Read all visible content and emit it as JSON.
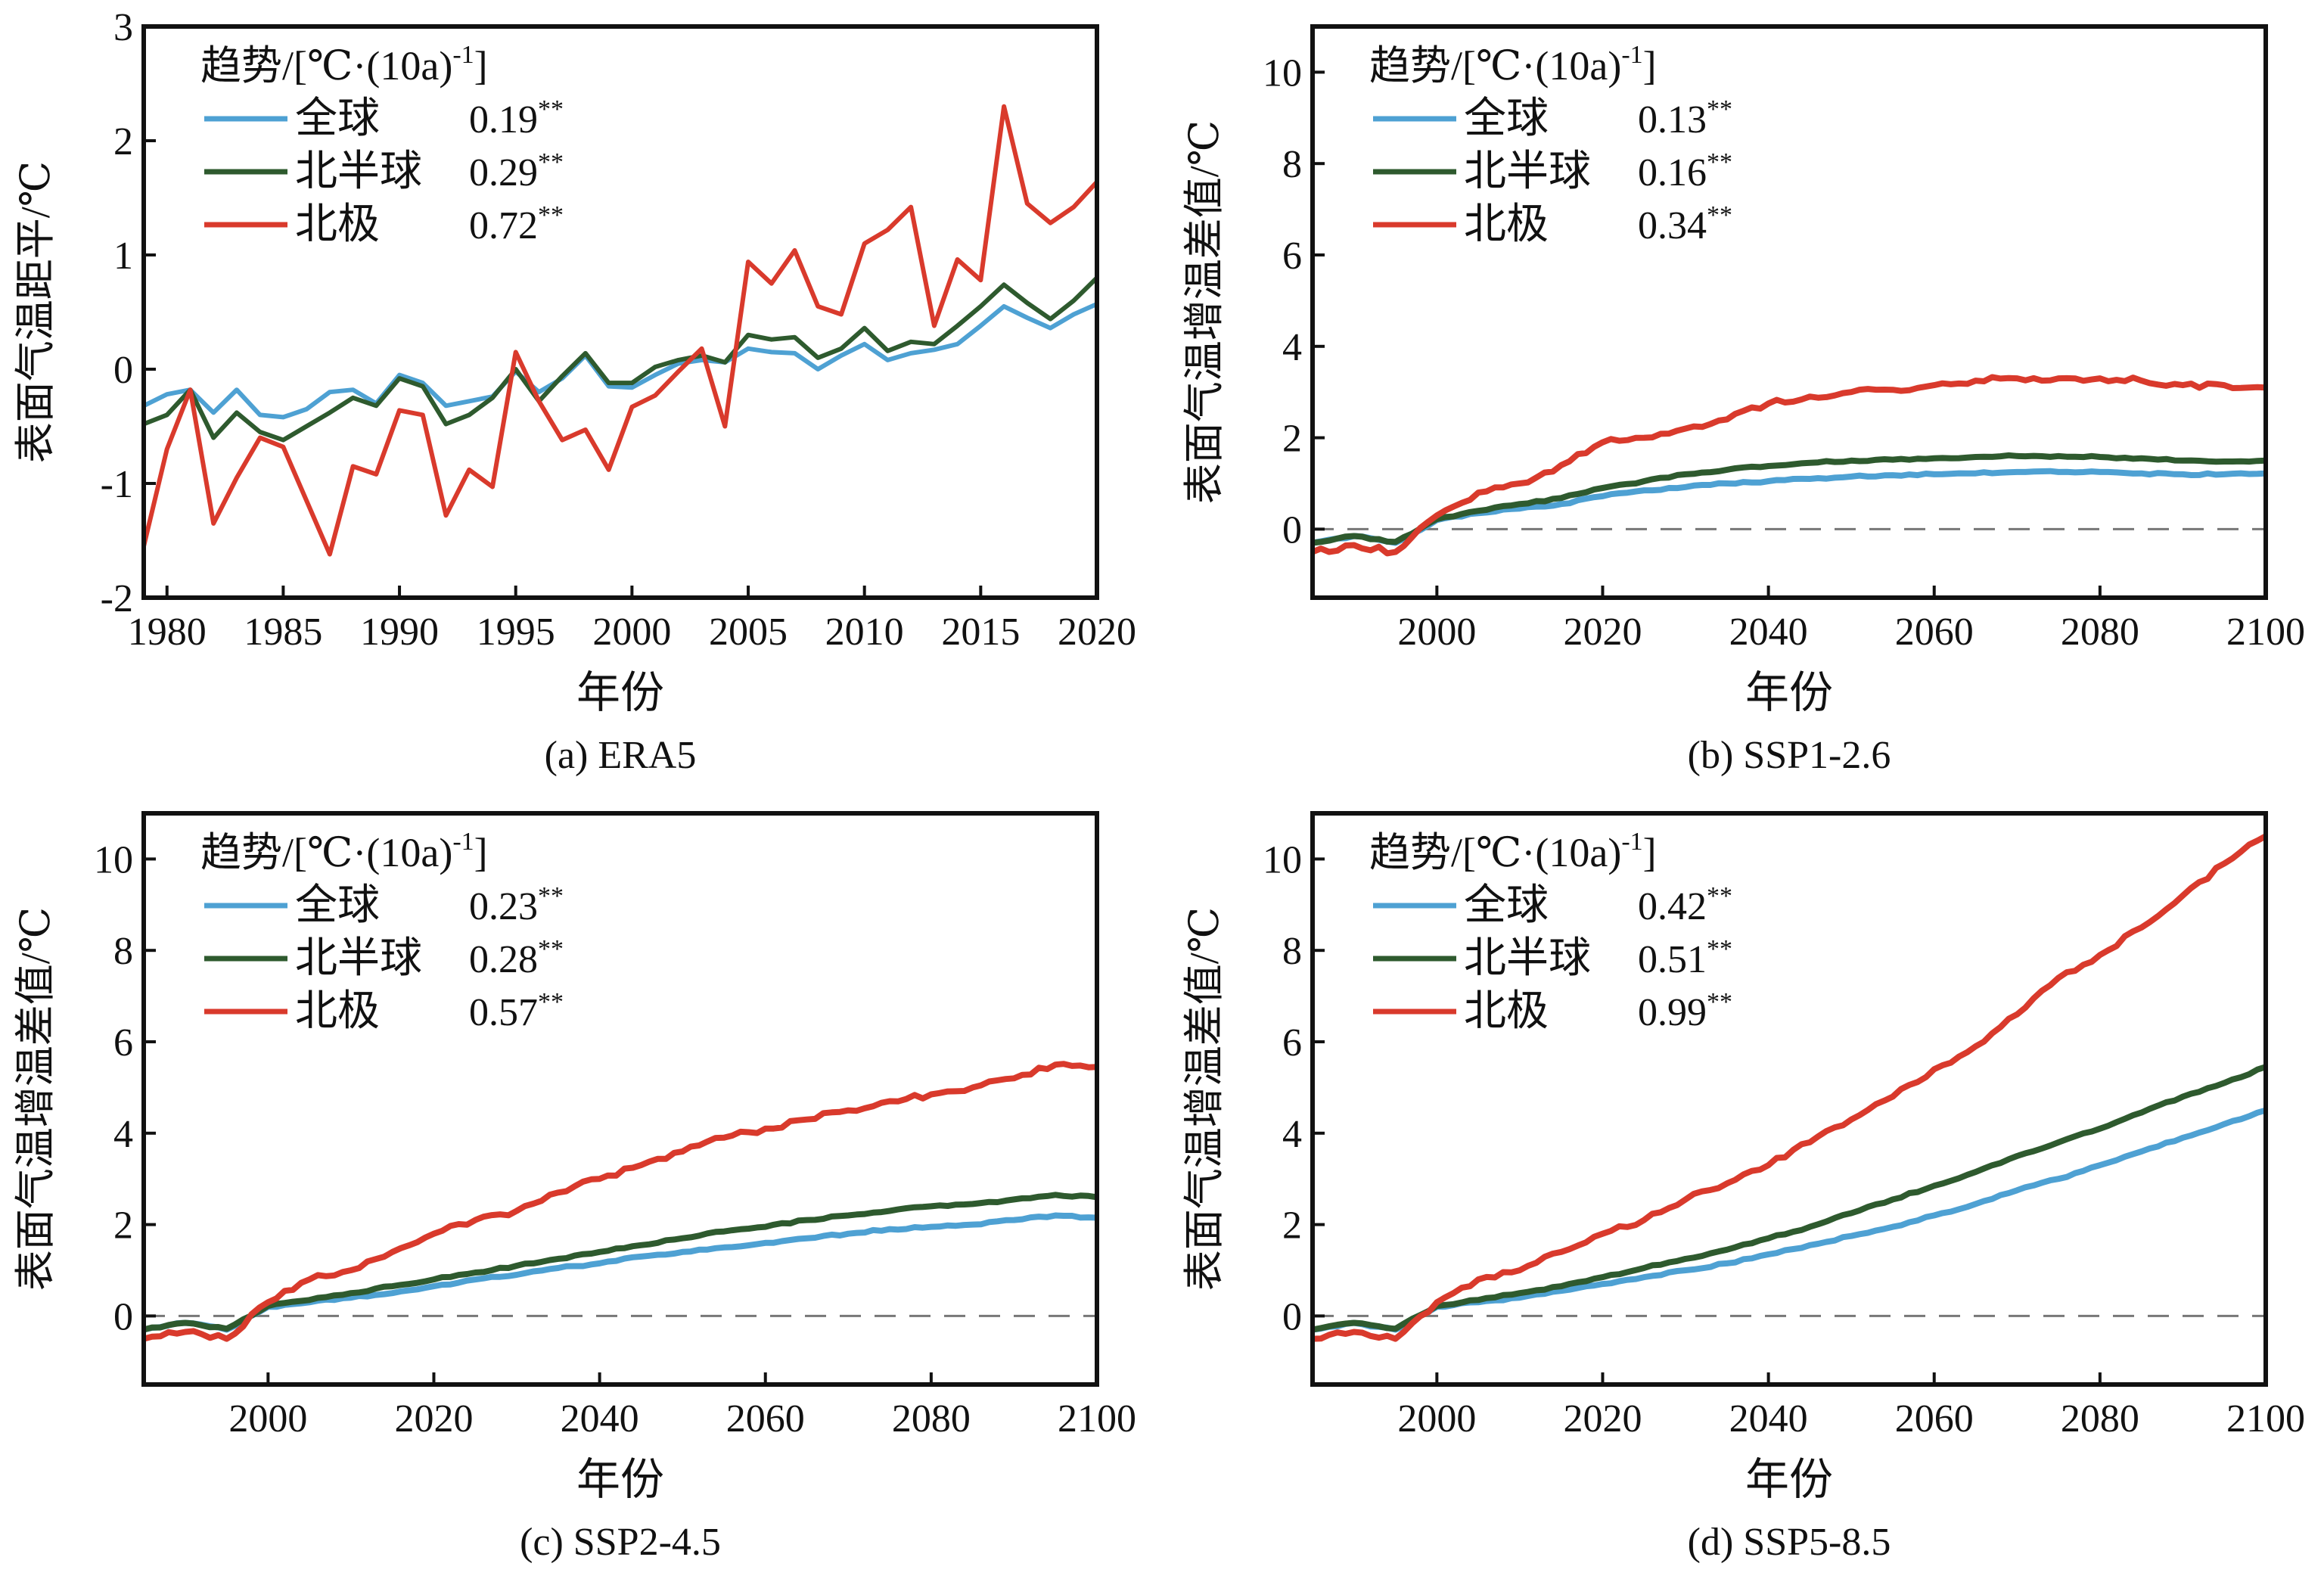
{
  "colors": {
    "global": "#4ea1d3",
    "nh": "#2e5a2e",
    "arctic": "#d93a2c",
    "zero": "#777777",
    "frame": "#111111"
  },
  "chart_data": [
    {
      "type": "line",
      "panel": "a",
      "caption": "(a) ERA5",
      "xlabel": "年份",
      "ylabel": "表面气温距平/℃",
      "xlim": [
        1979,
        2020
      ],
      "ylim": [
        -2,
        3
      ],
      "xticks": [
        1980,
        1985,
        1990,
        1995,
        2000,
        2005,
        2010,
        2015,
        2020
      ],
      "yticks": [
        -2,
        -1,
        0,
        1,
        2,
        3
      ],
      "zero_line": false,
      "legend": {
        "title_main": "趋势/[℃·(10a)",
        "title_sup": "-1",
        "title_end": "]",
        "entries": [
          {
            "name": "全球",
            "trend": "0.19",
            "sig": "**"
          },
          {
            "name": "北半球",
            "trend": "0.29",
            "sig": "**"
          },
          {
            "name": "北极",
            "trend": "0.72",
            "sig": "**"
          }
        ]
      },
      "x": [
        1979,
        1980,
        1981,
        1982,
        1983,
        1984,
        1985,
        1986,
        1987,
        1988,
        1989,
        1990,
        1991,
        1992,
        1993,
        1994,
        1995,
        1996,
        1997,
        1998,
        1999,
        2000,
        2001,
        2002,
        2003,
        2004,
        2005,
        2006,
        2007,
        2008,
        2009,
        2010,
        2011,
        2012,
        2013,
        2014,
        2015,
        2016,
        2017,
        2018,
        2019,
        2020
      ],
      "series": [
        {
          "name": "全球",
          "values": [
            -0.32,
            -0.22,
            -0.18,
            -0.38,
            -0.18,
            -0.4,
            -0.42,
            -0.35,
            -0.2,
            -0.18,
            -0.3,
            -0.05,
            -0.12,
            -0.32,
            -0.28,
            -0.24,
            -0.02,
            -0.2,
            -0.08,
            0.12,
            -0.15,
            -0.16,
            -0.05,
            0.05,
            0.08,
            0.06,
            0.18,
            0.15,
            0.14,
            0.0,
            0.12,
            0.22,
            0.08,
            0.14,
            0.17,
            0.22,
            0.38,
            0.55,
            0.45,
            0.36,
            0.48,
            0.57
          ]
        },
        {
          "name": "北半球",
          "values": [
            -0.48,
            -0.4,
            -0.18,
            -0.6,
            -0.38,
            -0.55,
            -0.62,
            -0.5,
            -0.38,
            -0.25,
            -0.32,
            -0.08,
            -0.15,
            -0.48,
            -0.4,
            -0.25,
            0.0,
            -0.28,
            -0.06,
            0.14,
            -0.12,
            -0.12,
            0.02,
            0.08,
            0.12,
            0.06,
            0.3,
            0.26,
            0.28,
            0.1,
            0.18,
            0.36,
            0.16,
            0.24,
            0.22,
            0.38,
            0.55,
            0.74,
            0.58,
            0.44,
            0.6,
            0.8
          ]
        },
        {
          "name": "北极",
          "values": [
            -1.55,
            -0.7,
            -0.18,
            -1.35,
            -0.95,
            -0.6,
            -0.68,
            -1.15,
            -1.62,
            -0.85,
            -0.92,
            -0.36,
            -0.4,
            -1.28,
            -0.88,
            -1.03,
            0.15,
            -0.28,
            -0.62,
            -0.53,
            -0.88,
            -0.33,
            -0.23,
            -0.02,
            0.18,
            -0.5,
            0.94,
            0.75,
            1.04,
            0.55,
            0.48,
            1.1,
            1.22,
            1.42,
            0.38,
            0.96,
            0.78,
            2.3,
            1.45,
            1.28,
            1.42,
            1.64
          ]
        }
      ]
    },
    {
      "type": "line",
      "panel": "b",
      "caption": "(b) SSP1-2.6",
      "xlabel": "年份",
      "ylabel": "表面气温增温差值/℃",
      "xlim": [
        1985,
        2100
      ],
      "ylim": [
        -1.5,
        11
      ],
      "xticks": [
        2000,
        2020,
        2040,
        2060,
        2080,
        2100
      ],
      "yticks": [
        0,
        2,
        4,
        6,
        8,
        10
      ],
      "zero_line": true,
      "legend": {
        "title_main": "趋势/[℃·(10a)",
        "title_sup": "-1",
        "title_end": "]",
        "entries": [
          {
            "name": "全球",
            "trend": "0.13",
            "sig": "**"
          },
          {
            "name": "北半球",
            "trend": "0.16",
            "sig": "**"
          },
          {
            "name": "北极",
            "trend": "0.34",
            "sig": "**"
          }
        ]
      },
      "x": [
        1985,
        1990,
        1995,
        2000,
        2005,
        2010,
        2015,
        2020,
        2025,
        2030,
        2035,
        2040,
        2045,
        2050,
        2055,
        2060,
        2065,
        2070,
        2075,
        2080,
        2085,
        2090,
        2095,
        2100
      ],
      "series": [
        {
          "name": "全球",
          "values": [
            -0.3,
            -0.15,
            -0.3,
            0.2,
            0.35,
            0.45,
            0.55,
            0.72,
            0.85,
            0.92,
            1.0,
            1.05,
            1.1,
            1.15,
            1.18,
            1.2,
            1.22,
            1.25,
            1.25,
            1.25,
            1.22,
            1.2,
            1.2,
            1.22
          ]
        },
        {
          "name": "北半球",
          "values": [
            -0.3,
            -0.15,
            -0.28,
            0.22,
            0.4,
            0.55,
            0.68,
            0.9,
            1.05,
            1.2,
            1.3,
            1.38,
            1.45,
            1.5,
            1.52,
            1.55,
            1.58,
            1.6,
            1.6,
            1.58,
            1.55,
            1.5,
            1.48,
            1.5
          ]
        },
        {
          "name": "北极",
          "values": [
            -0.5,
            -0.35,
            -0.5,
            0.3,
            0.8,
            1.0,
            1.4,
            1.9,
            2.0,
            2.2,
            2.4,
            2.75,
            2.9,
            3.0,
            3.05,
            3.15,
            3.25,
            3.3,
            3.3,
            3.3,
            3.25,
            3.15,
            3.15,
            3.1
          ]
        }
      ]
    },
    {
      "type": "line",
      "panel": "c",
      "caption": "(c) SSP2-4.5",
      "xlabel": "年份",
      "ylabel": "表面气温增温差值/℃",
      "xlim": [
        1985,
        2100
      ],
      "ylim": [
        -1.5,
        11
      ],
      "xticks": [
        2000,
        2020,
        2040,
        2060,
        2080,
        2100
      ],
      "yticks": [
        0,
        2,
        4,
        6,
        8,
        10
      ],
      "zero_line": true,
      "legend": {
        "title_main": "趋势/[℃·(10a)",
        "title_sup": "-1",
        "title_end": "]",
        "entries": [
          {
            "name": "全球",
            "trend": "0.23",
            "sig": "**"
          },
          {
            "name": "北半球",
            "trend": "0.28",
            "sig": "**"
          },
          {
            "name": "北极",
            "trend": "0.57",
            "sig": "**"
          }
        ]
      },
      "x": [
        1985,
        1990,
        1995,
        2000,
        2005,
        2010,
        2015,
        2020,
        2025,
        2030,
        2035,
        2040,
        2045,
        2050,
        2055,
        2060,
        2065,
        2070,
        2075,
        2080,
        2085,
        2090,
        2095,
        2100
      ],
      "series": [
        {
          "name": "全球",
          "values": [
            -0.3,
            -0.15,
            -0.3,
            0.2,
            0.3,
            0.4,
            0.5,
            0.65,
            0.8,
            0.9,
            1.05,
            1.15,
            1.3,
            1.4,
            1.5,
            1.6,
            1.7,
            1.8,
            1.9,
            1.95,
            2.0,
            2.1,
            2.2,
            2.15
          ]
        },
        {
          "name": "北半球",
          "values": [
            -0.3,
            -0.15,
            -0.28,
            0.22,
            0.35,
            0.5,
            0.65,
            0.8,
            0.95,
            1.1,
            1.25,
            1.4,
            1.55,
            1.7,
            1.85,
            1.95,
            2.1,
            2.2,
            2.3,
            2.4,
            2.45,
            2.55,
            2.65,
            2.6
          ]
        },
        {
          "name": "北极",
          "values": [
            -0.5,
            -0.35,
            -0.5,
            0.3,
            0.8,
            1.0,
            1.4,
            1.8,
            2.1,
            2.3,
            2.7,
            3.0,
            3.3,
            3.6,
            3.9,
            4.1,
            4.3,
            4.5,
            4.7,
            4.85,
            5.0,
            5.2,
            5.5,
            5.45
          ]
        }
      ]
    },
    {
      "type": "line",
      "panel": "d",
      "caption": "(d) SSP5-8.5",
      "xlabel": "年份",
      "ylabel": "表面气温增温差值/℃",
      "xlim": [
        1985,
        2100
      ],
      "ylim": [
        -1.5,
        11
      ],
      "xticks": [
        2000,
        2020,
        2040,
        2060,
        2080,
        2100
      ],
      "yticks": [
        0,
        2,
        4,
        6,
        8,
        10
      ],
      "zero_line": true,
      "legend": {
        "title_main": "趋势/[℃·(10a)",
        "title_sup": "-1",
        "title_end": "]",
        "entries": [
          {
            "name": "全球",
            "trend": "0.42",
            "sig": "**"
          },
          {
            "name": "北半球",
            "trend": "0.51",
            "sig": "**"
          },
          {
            "name": "北极",
            "trend": "0.99",
            "sig": "**"
          }
        ]
      },
      "x": [
        1985,
        1990,
        1995,
        2000,
        2005,
        2010,
        2015,
        2020,
        2025,
        2030,
        2035,
        2040,
        2045,
        2050,
        2055,
        2060,
        2065,
        2070,
        2075,
        2080,
        2085,
        2090,
        2095,
        2100
      ],
      "series": [
        {
          "name": "全球",
          "values": [
            -0.3,
            -0.15,
            -0.3,
            0.2,
            0.3,
            0.4,
            0.55,
            0.7,
            0.85,
            1.0,
            1.15,
            1.35,
            1.55,
            1.75,
            1.95,
            2.2,
            2.45,
            2.75,
            3.0,
            3.3,
            3.6,
            3.9,
            4.2,
            4.5
          ]
        },
        {
          "name": "北半球",
          "values": [
            -0.3,
            -0.15,
            -0.28,
            0.22,
            0.35,
            0.5,
            0.65,
            0.85,
            1.05,
            1.25,
            1.45,
            1.7,
            1.95,
            2.25,
            2.55,
            2.85,
            3.15,
            3.5,
            3.8,
            4.1,
            4.45,
            4.8,
            5.1,
            5.45
          ]
        },
        {
          "name": "北极",
          "values": [
            -0.5,
            -0.35,
            -0.5,
            0.3,
            0.8,
            1.0,
            1.4,
            1.8,
            2.1,
            2.55,
            2.9,
            3.3,
            3.8,
            4.3,
            4.8,
            5.4,
            5.9,
            6.6,
            7.4,
            7.9,
            8.5,
            9.2,
            9.9,
            10.5
          ]
        }
      ]
    }
  ]
}
